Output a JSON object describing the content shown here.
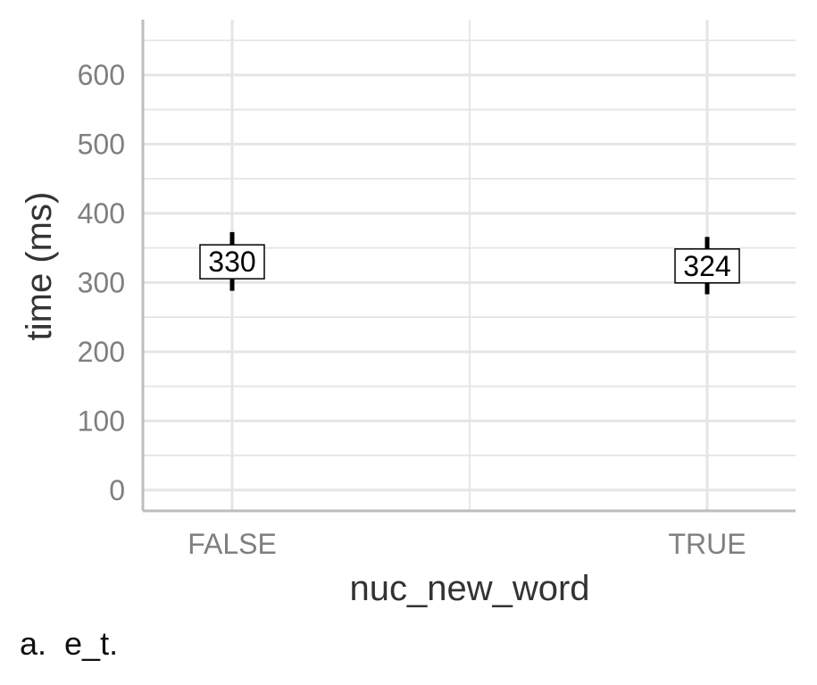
{
  "chart_data": {
    "type": "scatter",
    "title": "",
    "xlabel": "nuc_new_word",
    "ylabel": "time (ms)",
    "categories": [
      "FALSE",
      "TRUE"
    ],
    "values": [
      330,
      324
    ],
    "value_labels": [
      "330",
      "324"
    ],
    "error_low": [
      288,
      283
    ],
    "error_high": [
      373,
      366
    ],
    "ylim": [
      -30,
      680
    ],
    "yticks": [
      0,
      100,
      200,
      300,
      400,
      500,
      600
    ],
    "grid": true,
    "colors": {
      "grid": "#e5e5e5",
      "axis": "#bdbdbd",
      "mark": "#000000"
    }
  },
  "caption": "a.  e_t."
}
